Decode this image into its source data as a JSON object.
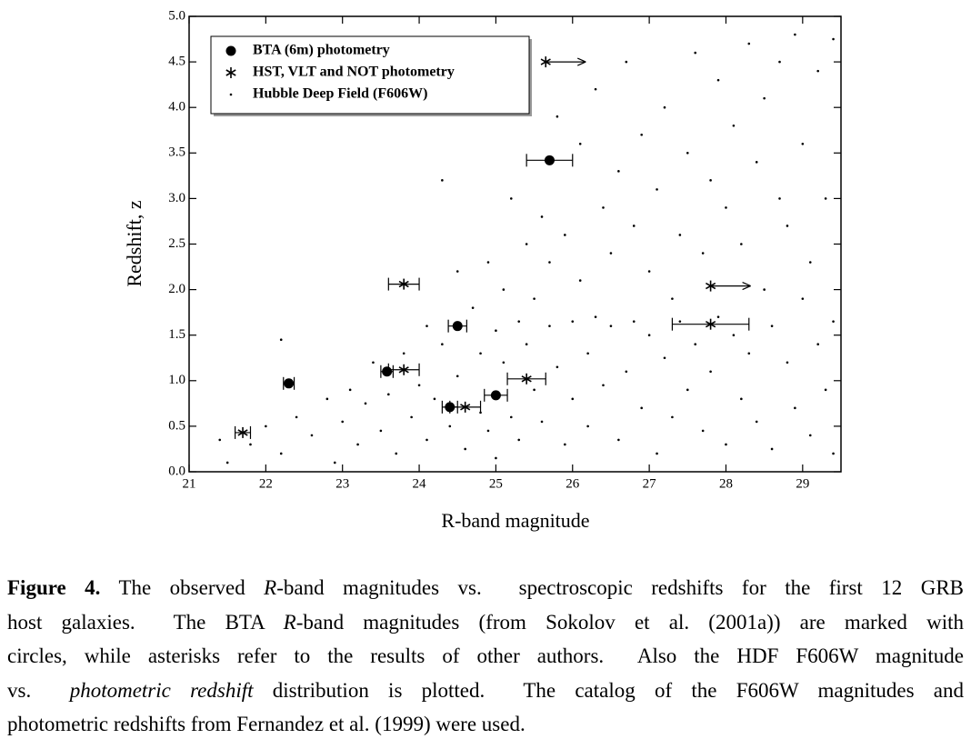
{
  "chart_data": {
    "type": "scatter",
    "xlabel": "R-band magnitude",
    "ylabel": "Redshift, z",
    "xlim": [
      21,
      29.5
    ],
    "ylim": [
      0,
      5
    ],
    "xticks": [
      21,
      22,
      23,
      24,
      25,
      26,
      27,
      28,
      29
    ],
    "yticks": [
      {
        "value": 0,
        "label": "0.0"
      },
      0.5,
      {
        "value": 1,
        "label": "1.0"
      },
      1.5,
      {
        "value": 2,
        "label": "2.0"
      },
      2.5,
      {
        "value": 3,
        "label": "3.0"
      },
      3.5,
      {
        "value": 4,
        "label": "4.0"
      },
      4.5,
      {
        "value": 5,
        "label": "5.0"
      }
    ],
    "legend": "upper left",
    "series": [
      {
        "name": "BTA (6m) photometry",
        "marker": "circle",
        "color": "#000000",
        "x": [
          22.3,
          23.58,
          24.4,
          24.5,
          25.0,
          25.7
        ],
        "values": [
          0.97,
          1.1,
          0.71,
          1.6,
          0.84,
          3.42
        ],
        "xerr": [
          0.07,
          0.08,
          0.1,
          0.12,
          0.15,
          0.3
        ]
      },
      {
        "name": "HST, VLT and NOT photometry",
        "marker": "asterisk",
        "color": "#000000",
        "x": [
          21.7,
          23.8,
          23.8,
          24.6,
          25.4,
          27.8,
          27.8,
          25.65
        ],
        "values": [
          0.43,
          2.06,
          1.12,
          0.71,
          1.02,
          1.62,
          2.04,
          4.5
        ],
        "xerr": [
          0.1,
          0.2,
          0.2,
          0.2,
          0.25,
          0.5,
          null,
          null
        ],
        "lower_limit": [
          false,
          false,
          false,
          false,
          false,
          false,
          true,
          true
        ]
      },
      {
        "name": "Hubble Deep Field (F606W)",
        "marker": "dot",
        "color": "#000000",
        "x": [
          21.4,
          21.5,
          21.8,
          22.0,
          22.2,
          22.2,
          22.4,
          22.6,
          22.8,
          22.9,
          23.0,
          23.1,
          23.2,
          23.3,
          23.4,
          23.5,
          23.6,
          23.7,
          23.8,
          23.9,
          24.0,
          24.1,
          24.1,
          24.2,
          24.3,
          24.3,
          24.4,
          24.5,
          24.5,
          24.6,
          24.7,
          24.8,
          24.8,
          24.9,
          24.9,
          25.0,
          25.0,
          25.1,
          25.1,
          25.2,
          25.2,
          25.3,
          25.3,
          25.4,
          25.4,
          25.5,
          25.5,
          25.6,
          25.6,
          25.7,
          25.7,
          25.8,
          25.8,
          25.9,
          25.9,
          26.0,
          26.0,
          26.1,
          26.1,
          26.2,
          26.2,
          26.3,
          26.3,
          26.4,
          26.4,
          26.5,
          26.5,
          26.6,
          26.6,
          26.7,
          26.7,
          26.8,
          26.8,
          26.9,
          26.9,
          27.0,
          27.0,
          27.1,
          27.1,
          27.2,
          27.2,
          27.3,
          27.3,
          27.4,
          27.4,
          27.5,
          27.5,
          27.6,
          27.6,
          27.7,
          27.7,
          27.8,
          27.8,
          27.9,
          27.9,
          28.0,
          28.0,
          28.1,
          28.1,
          28.2,
          28.2,
          28.3,
          28.3,
          28.4,
          28.4,
          28.5,
          28.5,
          28.6,
          28.6,
          28.7,
          28.7,
          28.8,
          28.8,
          28.9,
          28.9,
          29.0,
          29.0,
          29.1,
          29.1,
          29.2,
          29.2,
          29.3,
          29.3,
          29.4,
          29.4,
          29.4
        ],
        "values": [
          0.35,
          0.1,
          0.3,
          0.5,
          1.45,
          0.2,
          0.6,
          0.4,
          0.8,
          0.1,
          0.55,
          0.9,
          0.3,
          0.75,
          1.2,
          0.45,
          0.85,
          0.2,
          1.3,
          0.6,
          0.95,
          0.35,
          1.6,
          0.8,
          3.2,
          1.4,
          0.5,
          2.2,
          1.05,
          0.25,
          1.8,
          0.65,
          1.3,
          2.3,
          0.45,
          1.55,
          0.15,
          2.0,
          1.2,
          0.6,
          3.0,
          1.65,
          0.35,
          2.5,
          1.4,
          0.9,
          1.9,
          2.8,
          0.55,
          1.6,
          2.3,
          1.15,
          3.9,
          0.3,
          2.6,
          1.65,
          0.8,
          3.6,
          2.1,
          1.3,
          0.5,
          4.2,
          1.7,
          2.9,
          0.95,
          1.6,
          2.4,
          0.35,
          3.3,
          1.1,
          4.5,
          1.65,
          2.7,
          0.7,
          3.7,
          1.5,
          2.2,
          0.2,
          3.1,
          1.25,
          4.0,
          1.9,
          0.6,
          2.6,
          1.65,
          3.5,
          0.9,
          4.6,
          1.4,
          2.4,
          0.45,
          3.2,
          1.1,
          4.3,
          1.7,
          0.3,
          2.9,
          1.5,
          3.8,
          0.8,
          2.5,
          4.7,
          1.3,
          3.4,
          0.55,
          2.0,
          4.1,
          1.6,
          0.25,
          3.0,
          4.5,
          1.2,
          2.7,
          4.8,
          0.7,
          3.6,
          1.9,
          2.3,
          0.4,
          4.4,
          1.4,
          3.0,
          0.9,
          4.75,
          1.65,
          0.2
        ]
      }
    ]
  },
  "caption": {
    "lines": [
      [
        {
          "text": "Figure 4.",
          "style": "bold"
        },
        {
          "text": " The observed ",
          "style": "normal"
        },
        {
          "text": "R",
          "style": "italic"
        },
        {
          "text": "-band magnitudes vs.  spectroscopic redshifts for the first 12 GRB",
          "style": "normal"
        }
      ],
      [
        {
          "text": "host galaxies.  The BTA ",
          "style": "normal"
        },
        {
          "text": "R",
          "style": "italic"
        },
        {
          "text": "-band magnitudes (from Sokolov et al. (2001a)) are marked with",
          "style": "normal"
        }
      ],
      [
        {
          "text": "circles, while asterisks refer to the results of other authors.  Also the HDF F606W magnitude",
          "style": "normal"
        }
      ],
      [
        {
          "text": "vs.  ",
          "style": "normal"
        },
        {
          "text": "photometric redshift",
          "style": "italic"
        },
        {
          "text": " distribution is plotted.  The catalog of the F606W magnitudes and",
          "style": "normal"
        }
      ],
      [
        {
          "text": "photometric redshifts from Fernandez et al. (1999) were used.",
          "style": "normal"
        }
      ]
    ]
  }
}
